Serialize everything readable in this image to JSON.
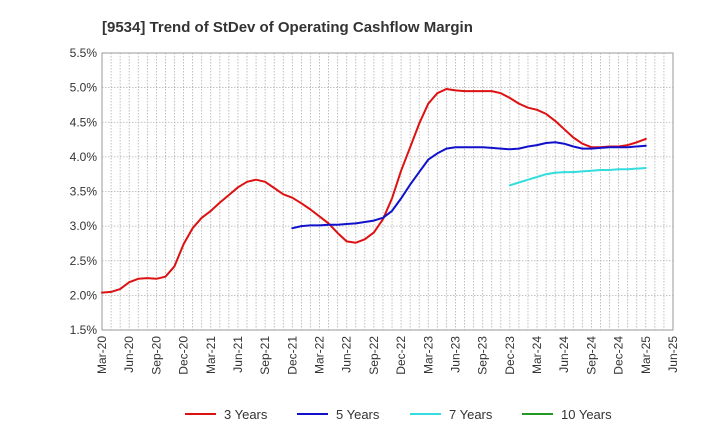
{
  "chart_data": {
    "type": "line",
    "title": "[9534]  Trend of StDev of Operating Cashflow Margin",
    "xlabel": "",
    "ylabel": "",
    "ylim": [
      1.5,
      5.5
    ],
    "y_ticks": [
      "1.5%",
      "2.0%",
      "2.5%",
      "3.0%",
      "3.5%",
      "4.0%",
      "4.5%",
      "5.0%",
      "5.5%"
    ],
    "x_tick_labels": [
      "Mar-20",
      "Jun-20",
      "Sep-20",
      "Dec-20",
      "Mar-21",
      "Jun-21",
      "Sep-21",
      "Dec-21",
      "Mar-22",
      "Jun-22",
      "Sep-22",
      "Dec-22",
      "Mar-23",
      "Jun-23",
      "Sep-23",
      "Dec-23",
      "Mar-24",
      "Jun-24",
      "Sep-24",
      "Dec-24",
      "Mar-25",
      "Jun-25"
    ],
    "grid": true,
    "legend_position": "bottom",
    "series": [
      {
        "name": "3 Years",
        "color": "#dd1111",
        "x": [
          "2020-03",
          "2020-04",
          "2020-05",
          "2020-06",
          "2020-07",
          "2020-08",
          "2020-09",
          "2020-10",
          "2020-11",
          "2020-12",
          "2021-01",
          "2021-02",
          "2021-03",
          "2021-04",
          "2021-05",
          "2021-06",
          "2021-07",
          "2021-08",
          "2021-09",
          "2021-10",
          "2021-11",
          "2021-12",
          "2022-01",
          "2022-02",
          "2022-03",
          "2022-04",
          "2022-05",
          "2022-06",
          "2022-07",
          "2022-08",
          "2022-09",
          "2022-10",
          "2022-11",
          "2022-12",
          "2023-01",
          "2023-02",
          "2023-03",
          "2023-04",
          "2023-05",
          "2023-06",
          "2023-07",
          "2023-08",
          "2023-09",
          "2023-10",
          "2023-11",
          "2023-12",
          "2024-01",
          "2024-02",
          "2024-03",
          "2024-04",
          "2024-05",
          "2024-06",
          "2024-07",
          "2024-08",
          "2024-09",
          "2024-10",
          "2024-11",
          "2024-12",
          "2025-01",
          "2025-02",
          "2025-03"
        ],
        "values": [
          2.04,
          2.05,
          2.09,
          2.19,
          2.24,
          2.25,
          2.24,
          2.27,
          2.42,
          2.74,
          2.97,
          3.12,
          3.22,
          3.34,
          3.45,
          3.56,
          3.64,
          3.67,
          3.64,
          3.55,
          3.46,
          3.41,
          3.33,
          3.24,
          3.14,
          3.04,
          2.9,
          2.78,
          2.76,
          2.81,
          2.91,
          3.1,
          3.4,
          3.8,
          4.14,
          4.48,
          4.77,
          4.92,
          4.98,
          4.96,
          4.95,
          4.95,
          4.95,
          4.95,
          4.92,
          4.85,
          4.77,
          4.71,
          4.68,
          4.62,
          4.52,
          4.4,
          4.28,
          4.19,
          4.14,
          4.14,
          4.15,
          4.15,
          4.17,
          4.21,
          4.26
        ]
      },
      {
        "name": "5 Years",
        "color": "#1111cc",
        "x": [
          "2021-12",
          "2022-01",
          "2022-02",
          "2022-03",
          "2022-04",
          "2022-05",
          "2022-06",
          "2022-07",
          "2022-08",
          "2022-09",
          "2022-10",
          "2022-11",
          "2022-12",
          "2023-01",
          "2023-02",
          "2023-03",
          "2023-04",
          "2023-05",
          "2023-06",
          "2023-07",
          "2023-08",
          "2023-09",
          "2023-10",
          "2023-11",
          "2023-12",
          "2024-01",
          "2024-02",
          "2024-03",
          "2024-04",
          "2024-05",
          "2024-06",
          "2024-07",
          "2024-08",
          "2024-09",
          "2024-10",
          "2024-11",
          "2024-12",
          "2025-01",
          "2025-02",
          "2025-03"
        ],
        "values": [
          2.97,
          3.0,
          3.01,
          3.01,
          3.02,
          3.02,
          3.03,
          3.04,
          3.06,
          3.08,
          3.12,
          3.22,
          3.4,
          3.6,
          3.78,
          3.96,
          4.05,
          4.12,
          4.14,
          4.14,
          4.14,
          4.14,
          4.13,
          4.12,
          4.11,
          4.12,
          4.15,
          4.17,
          4.2,
          4.21,
          4.19,
          4.15,
          4.12,
          4.12,
          4.13,
          4.14,
          4.14,
          4.14,
          4.15,
          4.16
        ]
      },
      {
        "name": "7 Years",
        "color": "#33dddd",
        "x": [
          "2023-12",
          "2024-01",
          "2024-02",
          "2024-03",
          "2024-04",
          "2024-05",
          "2024-06",
          "2024-07",
          "2024-08",
          "2024-09",
          "2024-10",
          "2024-11",
          "2024-12",
          "2025-01",
          "2025-02",
          "2025-03"
        ],
        "values": [
          3.59,
          3.63,
          3.67,
          3.71,
          3.75,
          3.77,
          3.78,
          3.78,
          3.79,
          3.8,
          3.81,
          3.81,
          3.82,
          3.82,
          3.83,
          3.84
        ]
      },
      {
        "name": "10 Years",
        "color": "#229922",
        "x": [],
        "values": []
      }
    ]
  }
}
